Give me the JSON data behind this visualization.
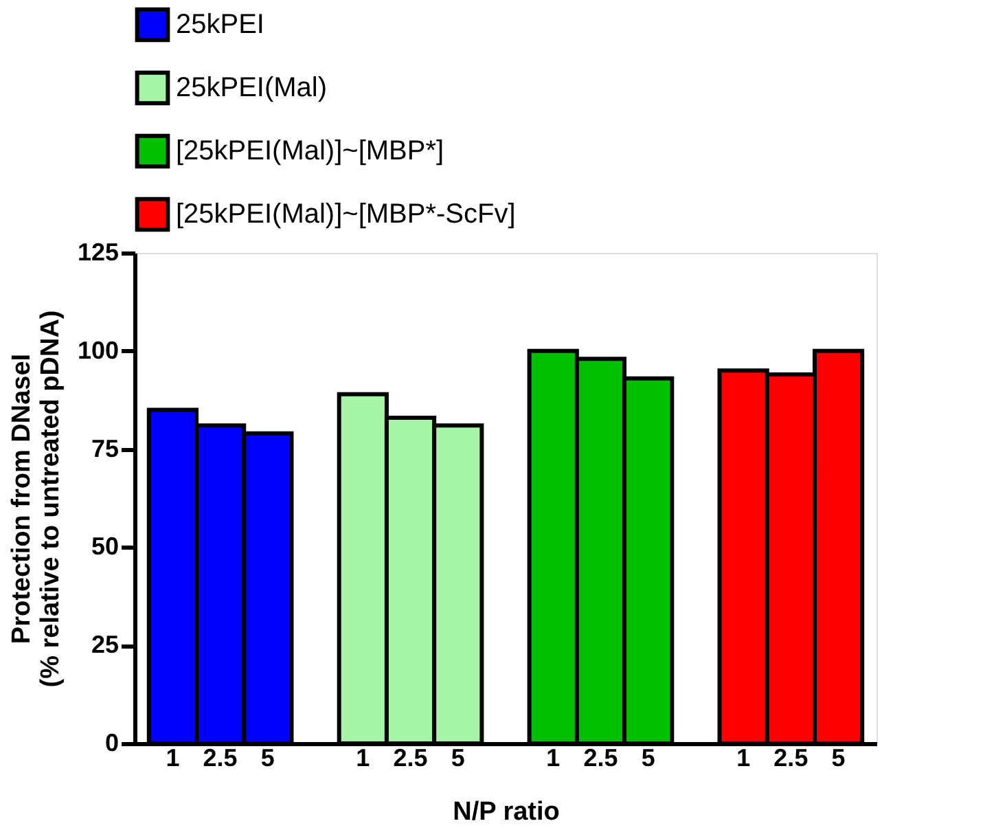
{
  "chart_data": {
    "type": "bar",
    "xlabel": "N/P ratio",
    "ylabel": "Protection from DNaseI\n(% relative to untreated pDNA)",
    "categories": [
      "1",
      "2.5",
      "5",
      "1",
      "2.5",
      "5",
      "1",
      "2.5",
      "5",
      "1",
      "2.5",
      "5"
    ],
    "series": [
      {
        "name": "25kPEI",
        "color": "#0000ff",
        "values": [
          85,
          81,
          79,
          null,
          null,
          null,
          null,
          null,
          null,
          null,
          null,
          null
        ]
      },
      {
        "name": "25kPEI(Mal)",
        "color": "#a6f5a6",
        "values": [
          null,
          null,
          null,
          89,
          83,
          81,
          null,
          null,
          null,
          null,
          null,
          null
        ]
      },
      {
        "name": "[25kPEI(Mal)]~[MBP*]",
        "color": "#00c000",
        "values": [
          null,
          null,
          null,
          null,
          null,
          null,
          100,
          98,
          93,
          null,
          null,
          null
        ]
      },
      {
        "name": "[25kPEI(Mal)]~[MBP*-ScFv]",
        "color": "#ff0000",
        "values": [
          null,
          null,
          null,
          null,
          null,
          null,
          null,
          null,
          null,
          95,
          94,
          100
        ]
      }
    ],
    "ylim": [
      0,
      125
    ],
    "yticks": [
      0,
      25,
      50,
      75,
      100,
      125
    ],
    "grid": false,
    "legend": "top"
  }
}
